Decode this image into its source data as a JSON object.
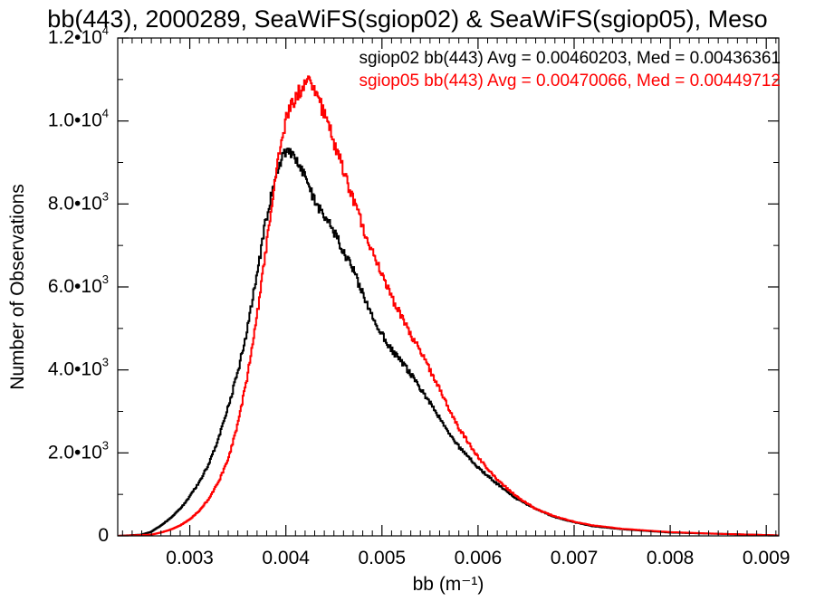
{
  "chart_data": {
    "type": "line",
    "title": "bb(443), 2000289, SeaWiFS(sgiop02) & SeaWiFS(sgiop05), Meso",
    "xlabel": "bb (m⁻¹)",
    "ylabel": "Number of Observations",
    "xlim": [
      0.00225,
      0.00913
    ],
    "ylim": [
      0,
      12000
    ],
    "grid": false,
    "legend_position": "top-right",
    "x_ticks": [
      {
        "value": 0.003,
        "label": "0.003"
      },
      {
        "value": 0.004,
        "label": "0.004"
      },
      {
        "value": 0.005,
        "label": "0.005"
      },
      {
        "value": 0.006,
        "label": "0.006"
      },
      {
        "value": 0.007,
        "label": "0.007"
      },
      {
        "value": 0.008,
        "label": "0.008"
      },
      {
        "value": 0.009,
        "label": "0.009"
      }
    ],
    "y_ticks": [
      {
        "value": 0,
        "mantissa": "0",
        "exponent": ""
      },
      {
        "value": 2000,
        "mantissa": "2.0•10",
        "exponent": "3"
      },
      {
        "value": 4000,
        "mantissa": "4.0•10",
        "exponent": "3"
      },
      {
        "value": 6000,
        "mantissa": "6.0•10",
        "exponent": "3"
      },
      {
        "value": 8000,
        "mantissa": "8.0•10",
        "exponent": "3"
      },
      {
        "value": 10000,
        "mantissa": "1.0•10",
        "exponent": "4"
      },
      {
        "value": 12000,
        "mantissa": "1.2•10",
        "exponent": "4"
      }
    ],
    "series": [
      {
        "name": "sgiop02 bb(443) Avg = 0.00460203, Med = 0.00436361",
        "color": "#000000",
        "x": [
          0.00225,
          0.0025,
          0.0026,
          0.0027,
          0.0028,
          0.0029,
          0.003,
          0.0031,
          0.0032,
          0.0033,
          0.0034,
          0.0035,
          0.0036,
          0.0037,
          0.0038,
          0.0039,
          0.004,
          0.0041,
          0.0042,
          0.0043,
          0.0044,
          0.0045,
          0.0046,
          0.0047,
          0.0048,
          0.0049,
          0.005,
          0.0051,
          0.0052,
          0.0053,
          0.0054,
          0.0055,
          0.0056,
          0.0057,
          0.0058,
          0.006,
          0.0062,
          0.0064,
          0.0066,
          0.0068,
          0.007,
          0.0072,
          0.0075,
          0.008,
          0.0085,
          0.009,
          0.00913
        ],
        "y": [
          0,
          30,
          100,
          250,
          430,
          650,
          950,
          1300,
          1750,
          2350,
          3100,
          3950,
          5000,
          6300,
          7700,
          8800,
          9300,
          9150,
          8600,
          8100,
          7700,
          7350,
          6850,
          6400,
          5850,
          5300,
          4850,
          4500,
          4200,
          3900,
          3550,
          3200,
          2850,
          2450,
          2150,
          1650,
          1250,
          900,
          650,
          450,
          330,
          230,
          160,
          80,
          50,
          20,
          10
        ]
      },
      {
        "name": "sgiop05 bb(443) Avg = 0.00470066, Med = 0.00449712",
        "color": "#ff0000",
        "x": [
          0.00225,
          0.0026,
          0.0027,
          0.0028,
          0.0029,
          0.003,
          0.0031,
          0.0032,
          0.0033,
          0.0034,
          0.0035,
          0.0036,
          0.0037,
          0.0038,
          0.0039,
          0.004,
          0.0041,
          0.0042,
          0.00425,
          0.0043,
          0.0044,
          0.0045,
          0.0046,
          0.0047,
          0.0048,
          0.0049,
          0.005,
          0.0051,
          0.0052,
          0.0053,
          0.0054,
          0.0055,
          0.0056,
          0.0057,
          0.0058,
          0.006,
          0.0062,
          0.0064,
          0.0066,
          0.0068,
          0.007,
          0.0072,
          0.0075,
          0.008,
          0.0085,
          0.009,
          0.00913
        ],
        "y": [
          0,
          30,
          80,
          150,
          250,
          400,
          600,
          900,
          1300,
          1850,
          2700,
          3850,
          5300,
          7000,
          8800,
          10000,
          10600,
          10850,
          10900,
          10700,
          10200,
          9500,
          8800,
          8100,
          7450,
          6850,
          6300,
          5750,
          5300,
          4850,
          4450,
          4000,
          3550,
          3050,
          2600,
          1900,
          1350,
          950,
          650,
          470,
          340,
          250,
          170,
          90,
          50,
          20,
          10
        ]
      }
    ]
  }
}
